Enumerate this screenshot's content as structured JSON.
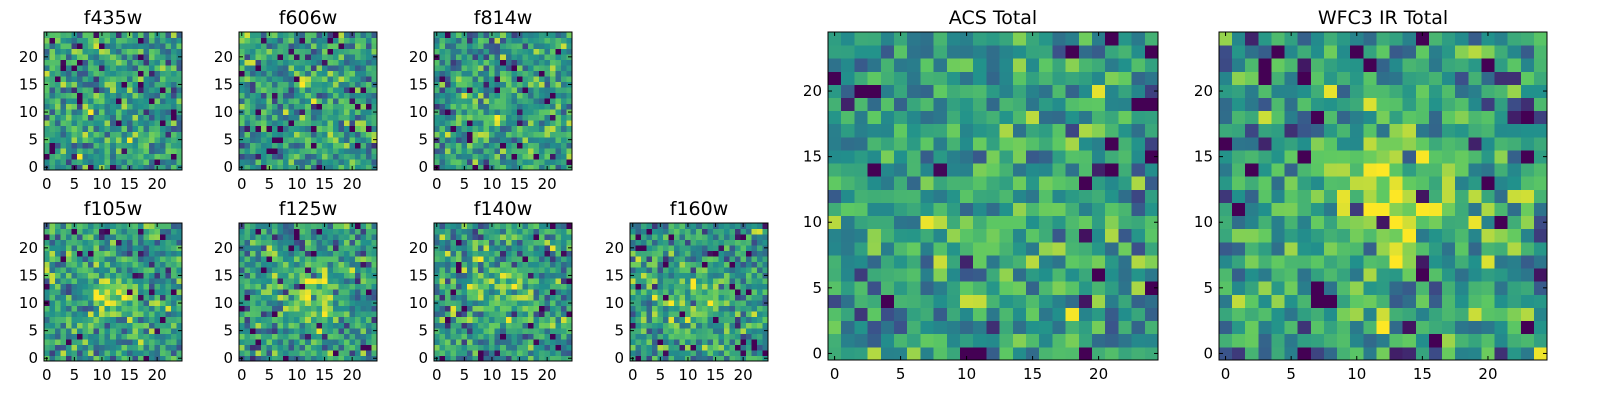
{
  "chart_data": [
    {
      "type": "heatmap",
      "title": "f435w",
      "xticks": [
        "0",
        "5",
        "10",
        "15",
        "20"
      ],
      "yticks": [
        "0",
        "5",
        "10",
        "15",
        "20"
      ],
      "xlim": [
        -0.5,
        24.5
      ],
      "ylim": [
        -0.5,
        24.5
      ],
      "grid": false,
      "colormap": "viridis",
      "signal": 0.08,
      "seed": 11
    },
    {
      "type": "heatmap",
      "title": "f606w",
      "xticks": [
        "0",
        "5",
        "10",
        "15",
        "20"
      ],
      "yticks": [
        "0",
        "5",
        "10",
        "15",
        "20"
      ],
      "xlim": [
        -0.5,
        24.5
      ],
      "ylim": [
        -0.5,
        24.5
      ],
      "grid": false,
      "colormap": "viridis",
      "signal": 0.15,
      "seed": 23
    },
    {
      "type": "heatmap",
      "title": "f814w",
      "xticks": [
        "0",
        "5",
        "10",
        "15",
        "20"
      ],
      "yticks": [
        "0",
        "5",
        "10",
        "15",
        "20"
      ],
      "xlim": [
        -0.5,
        24.5
      ],
      "ylim": [
        -0.5,
        24.5
      ],
      "grid": false,
      "colormap": "viridis",
      "signal": 0.2,
      "seed": 37
    },
    {
      "type": "heatmap",
      "title": "f105w",
      "xticks": [
        "0",
        "5",
        "10",
        "15",
        "20"
      ],
      "yticks": [
        "0",
        "5",
        "10",
        "15",
        "20"
      ],
      "xlim": [
        -0.5,
        24.5
      ],
      "ylim": [
        -0.5,
        24.5
      ],
      "grid": false,
      "colormap": "viridis",
      "signal": 0.45,
      "seed": 41
    },
    {
      "type": "heatmap",
      "title": "f125w",
      "xticks": [
        "0",
        "5",
        "10",
        "15",
        "20"
      ],
      "yticks": [
        "0",
        "5",
        "10",
        "15",
        "20"
      ],
      "xlim": [
        -0.5,
        24.5
      ],
      "ylim": [
        -0.5,
        24.5
      ],
      "grid": false,
      "colormap": "viridis",
      "signal": 0.5,
      "seed": 53
    },
    {
      "type": "heatmap",
      "title": "f140w",
      "xticks": [
        "0",
        "5",
        "10",
        "15",
        "20"
      ],
      "yticks": [
        "0",
        "5",
        "10",
        "15",
        "20"
      ],
      "xlim": [
        -0.5,
        24.5
      ],
      "ylim": [
        -0.5,
        24.5
      ],
      "grid": false,
      "colormap": "viridis",
      "signal": 0.45,
      "seed": 67
    },
    {
      "type": "heatmap",
      "title": "f160w",
      "xticks": [
        "0",
        "5",
        "10",
        "15",
        "20"
      ],
      "yticks": [
        "0",
        "5",
        "10",
        "15",
        "20"
      ],
      "xlim": [
        -0.5,
        24.5
      ],
      "ylim": [
        -0.5,
        24.5
      ],
      "grid": false,
      "colormap": "viridis",
      "signal": 0.4,
      "seed": 79
    },
    {
      "type": "heatmap",
      "title": "ACS Total",
      "xticks": [
        "0",
        "5",
        "10",
        "15",
        "20"
      ],
      "yticks": [
        "0",
        "5",
        "10",
        "15",
        "20"
      ],
      "xlim": [
        -0.5,
        24.5
      ],
      "ylim": [
        -0.5,
        24.5
      ],
      "grid": false,
      "colormap": "viridis",
      "signal": 0.3,
      "seed": 83
    },
    {
      "type": "heatmap",
      "title": "WFC3 IR Total",
      "xticks": [
        "0",
        "5",
        "10",
        "15",
        "20"
      ],
      "yticks": [
        "0",
        "5",
        "10",
        "15",
        "20"
      ],
      "xlim": [
        -0.5,
        24.5
      ],
      "ylim": [
        -0.5,
        24.5
      ],
      "grid": false,
      "colormap": "viridis",
      "signal": 0.7,
      "seed": 97
    }
  ],
  "colors": {
    "viridis": [
      "#440154",
      "#3b528b",
      "#21918c",
      "#5ec962",
      "#fde725"
    ]
  }
}
